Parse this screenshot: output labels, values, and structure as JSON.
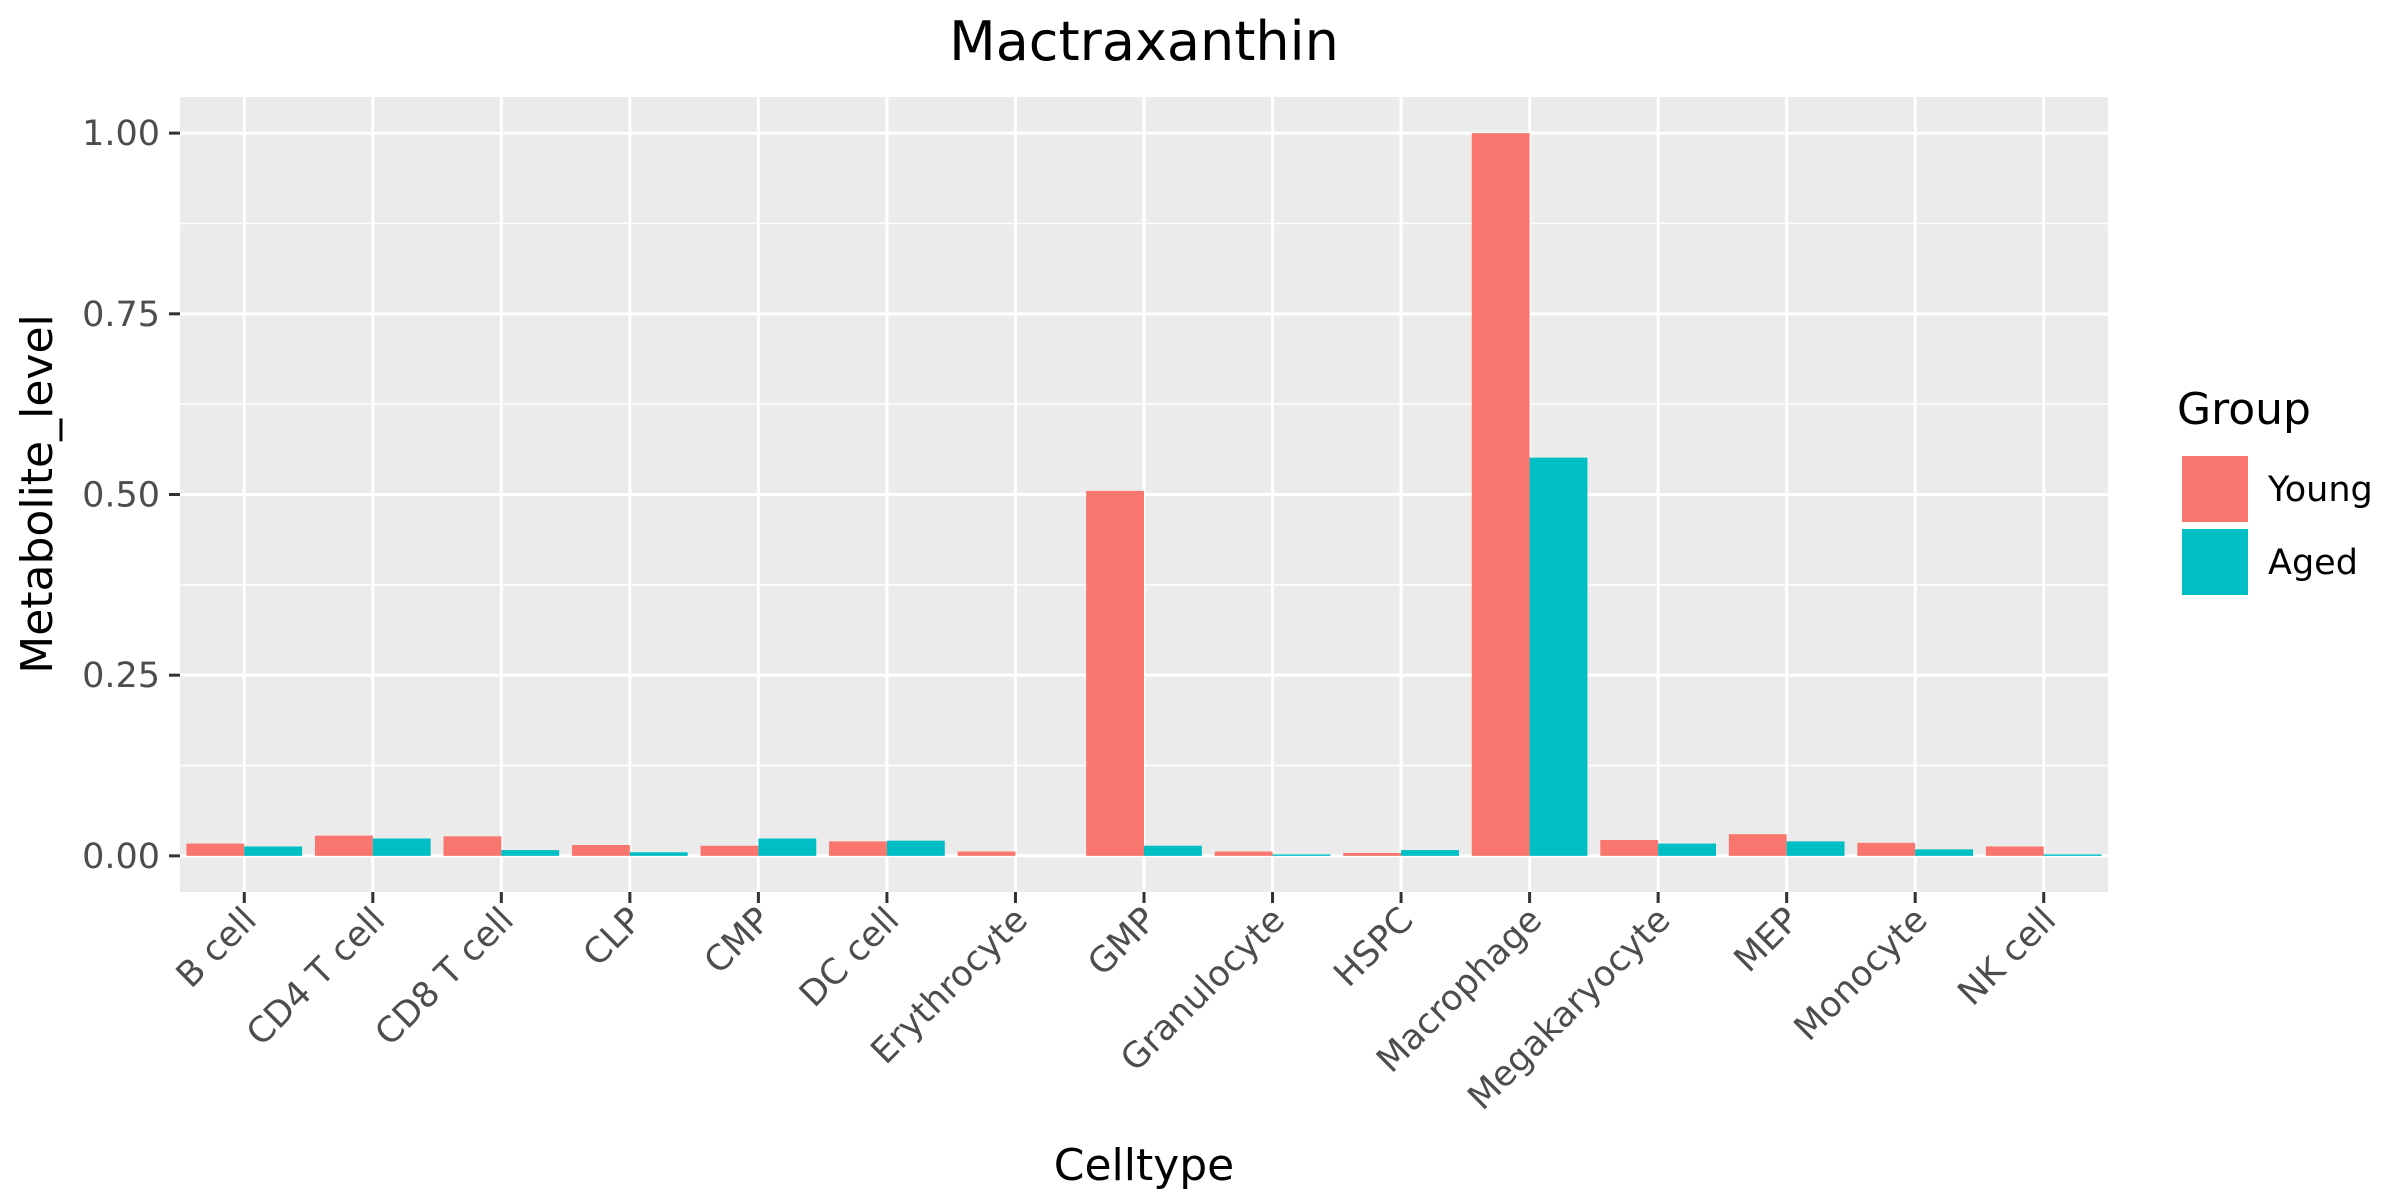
{
  "chart_data": {
    "type": "bar",
    "title": "Mactraxanthin",
    "xlabel": "Celltype",
    "ylabel": "Metabolite_level",
    "ylim": [
      -0.05,
      1.05
    ],
    "yticks": [
      0,
      0.25,
      0.5,
      0.75,
      1
    ],
    "ytick_labels": [
      "0.00",
      "0.25",
      "0.50",
      "0.75",
      "1.00"
    ],
    "grid": true,
    "legend": {
      "title": "Group",
      "placement": "right"
    },
    "categories": [
      "B cell",
      "CD4 T cell",
      "CD8 T cell",
      "CLP",
      "CMP",
      "DC cell",
      "Erythrocyte",
      "GMP",
      "Granulocyte",
      "HSPC",
      "Macrophage",
      "Megakaryocyte",
      "MEP",
      "Monocyte",
      "NK cell"
    ],
    "series": [
      {
        "name": "Young",
        "color": "#F8766D",
        "values": [
          0.017,
          0.028,
          0.027,
          0.015,
          0.014,
          0.02,
          0.006,
          0.505,
          0.006,
          0.004,
          1.0,
          0.022,
          0.03,
          0.018,
          0.013
        ]
      },
      {
        "name": "Aged",
        "color": "#00BFC4",
        "values": [
          0.013,
          0.024,
          0.008,
          0.005,
          0.024,
          0.021,
          0.0,
          0.014,
          0.002,
          0.008,
          0.551,
          0.017,
          0.02,
          0.009,
          0.002
        ]
      }
    ]
  }
}
